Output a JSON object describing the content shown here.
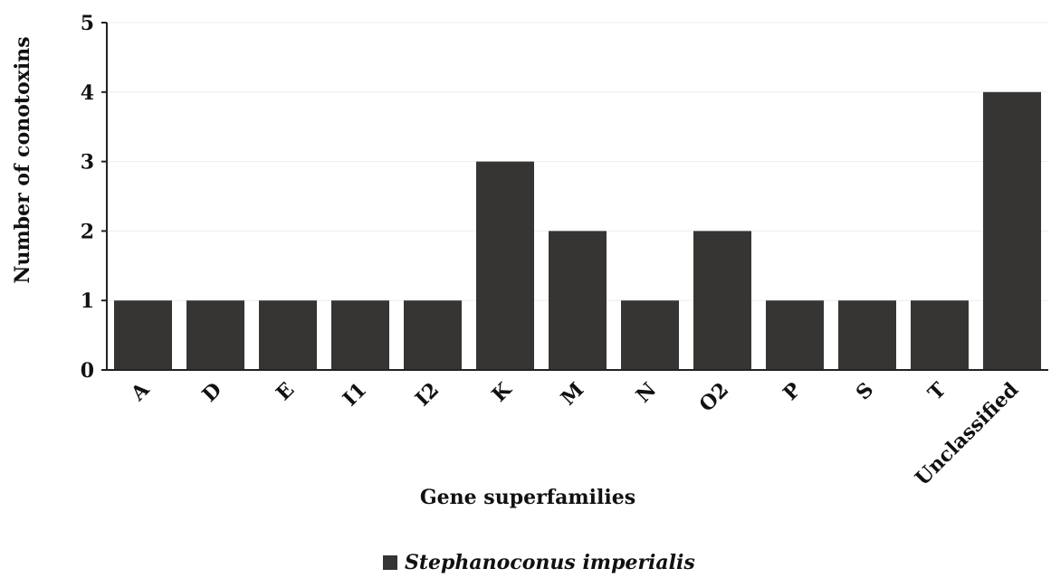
{
  "chart_data": {
    "type": "bar",
    "title": "",
    "categories": [
      "A",
      "D",
      "E",
      "I1",
      "I2",
      "K",
      "M",
      "N",
      "O2",
      "P",
      "S",
      "T",
      "Unclassified"
    ],
    "series": [
      {
        "name": "Stephanoconus imperialis",
        "values": [
          1,
          1,
          1,
          1,
          1,
          3,
          2,
          1,
          2,
          1,
          1,
          1,
          4
        ],
        "color": "#363534"
      }
    ],
    "xlabel": "Gene superfamilies",
    "ylabel": "Number of conotoxins",
    "ylim": [
      0,
      5
    ],
    "yticks": [
      "0",
      "1",
      "2",
      "3",
      "4",
      "5"
    ],
    "grid": true,
    "grid_color": "#eeeeee",
    "axis_color": "#222222",
    "legend_position": "bottom-center",
    "x_tick_rotation_deg": -45
  }
}
